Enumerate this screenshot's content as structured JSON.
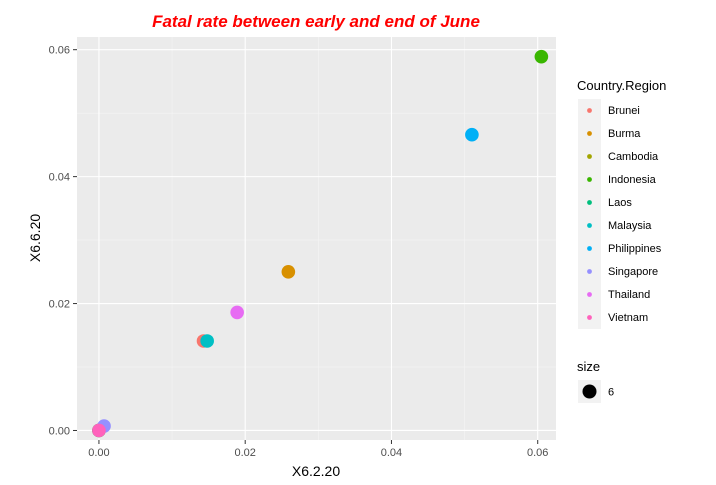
{
  "chart_data": {
    "type": "scatter",
    "title": "Fatal rate between early and end of June",
    "title_color": "#ff0000",
    "xlabel": "X6.2.20",
    "ylabel": "X6.6.20",
    "xlim": [
      -0.003,
      0.0625
    ],
    "ylim": [
      -0.0015,
      0.062
    ],
    "x_ticks": [
      0.0,
      0.02,
      0.04,
      0.06
    ],
    "x_tick_labels": [
      "0.00",
      "0.02",
      "0.04",
      "0.06"
    ],
    "y_ticks": [
      0.0,
      0.02,
      0.04,
      0.06
    ],
    "y_tick_labels": [
      "0.00",
      "0.02",
      "0.04",
      "0.06"
    ],
    "grid": true,
    "panel_background": "#ebebeb",
    "legend_title": "Country.Region",
    "legend_position": "right",
    "series": [
      {
        "name": "Brunei",
        "color": "#F8766D",
        "x": 0.0143,
        "y": 0.0141
      },
      {
        "name": "Burma",
        "color": "#D89000",
        "x": 0.0259,
        "y": 0.025
      },
      {
        "name": "Cambodia",
        "color": "#A3A500",
        "x": 0.0,
        "y": 0.0
      },
      {
        "name": "Indonesia",
        "color": "#39B600",
        "x": 0.0605,
        "y": 0.0589
      },
      {
        "name": "Laos",
        "color": "#00BF7D",
        "x": 0.0,
        "y": 0.0
      },
      {
        "name": "Malaysia",
        "color": "#00BFC4",
        "x": 0.0148,
        "y": 0.0141
      },
      {
        "name": "Philippines",
        "color": "#00B0F6",
        "x": 0.051,
        "y": 0.0466
      },
      {
        "name": "Singapore",
        "color": "#9590FF",
        "x": 0.0007,
        "y": 0.0007
      },
      {
        "name": "Thailand",
        "color": "#E76BF3",
        "x": 0.0189,
        "y": 0.0186
      },
      {
        "name": "Vietnam",
        "color": "#FF62BC",
        "x": 0.0,
        "y": 0.0
      }
    ],
    "size_legend": {
      "title": "size",
      "value": "6",
      "color": "#000000"
    }
  }
}
